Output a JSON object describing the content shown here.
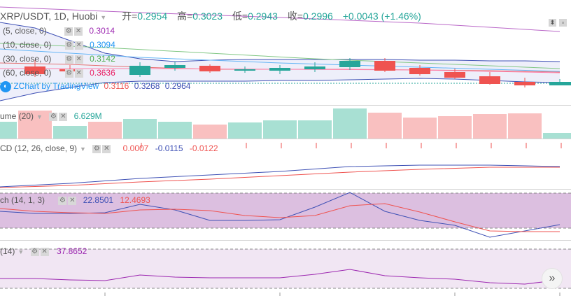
{
  "header": {
    "symbol": "XRP/USDT, 1D, Huobi",
    "open_label": "开=",
    "open": "0.2954",
    "high_label": "高=",
    "high": "0.3023",
    "low_label": "低=",
    "low": "0.2943",
    "close_label": "收=",
    "close": "0.2996",
    "change": "+0.0043 (+1.46%)"
  },
  "colors": {
    "up": "#26a69a",
    "down": "#ef5350",
    "ma5": "#9c27b0",
    "ma10": "#2196f3",
    "ma30": "#4caf50",
    "ma60": "#e91e63",
    "bb": "#3f51b5"
  },
  "icons": {
    "eye": "eye-icon",
    "settings": "gear-icon",
    "close": "close-icon",
    "more": "chevron-down-icon",
    "scroll": "double-chevron-right-icon"
  },
  "main": {
    "ma5": {
      "label": "(5, close, 0)",
      "value": "0.3014"
    },
    "ma10": {
      "label": "(10, close, 0)",
      "value": "0.3094"
    },
    "ma30": {
      "label": "(30, close, 0)",
      "value": "0.3142"
    },
    "ma60": {
      "label": "(60, close, 0)",
      "value": "0.3636"
    },
    "bb_label": "ZChart by TradingView",
    "bb_values": [
      "0.3116",
      "0.3268",
      "0.2964"
    ]
  },
  "volume": {
    "label": "ume (20)",
    "value": "6.629M"
  },
  "macd": {
    "label": "CD (12, 26, close, 9)",
    "values": [
      "0.0007",
      "-0.0115",
      "-0.0122"
    ]
  },
  "stoch": {
    "label": "ch (14, 1, 3)",
    "values": [
      "22.8501",
      "12.4693"
    ]
  },
  "rsi": {
    "label": "(14)",
    "value": "37.8652"
  }
}
